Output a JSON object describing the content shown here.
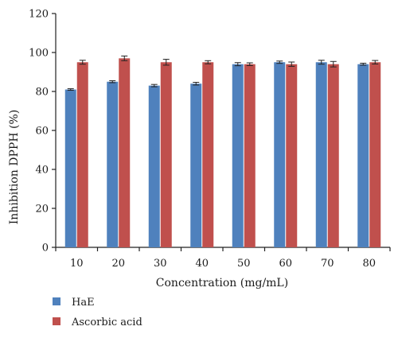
{
  "chart_data": {
    "type": "bar",
    "title": "",
    "xlabel": "Concentration (mg/mL)",
    "ylabel": "Inhibition DPPH (%)",
    "categories": [
      "10",
      "20",
      "30",
      "40",
      "50",
      "60",
      "70",
      "80"
    ],
    "ylim": [
      0,
      120
    ],
    "yticks": [
      0,
      20,
      40,
      60,
      80,
      100,
      120
    ],
    "grid": false,
    "legend_position": "bottom-left",
    "series": [
      {
        "name": "HaE",
        "color": "#4F81BD",
        "values": [
          81,
          85,
          83,
          84,
          94,
          95,
          95,
          94
        ],
        "errors": [
          0.4,
          0.5,
          0.6,
          0.7,
          0.8,
          0.6,
          1.0,
          0.5
        ]
      },
      {
        "name": "Ascorbic acid",
        "color": "#C0504D",
        "values": [
          95,
          97,
          95,
          95,
          94,
          94,
          94,
          95
        ],
        "errors": [
          1.0,
          1.2,
          1.5,
          0.8,
          0.7,
          1.1,
          1.4,
          0.9
        ]
      }
    ]
  }
}
